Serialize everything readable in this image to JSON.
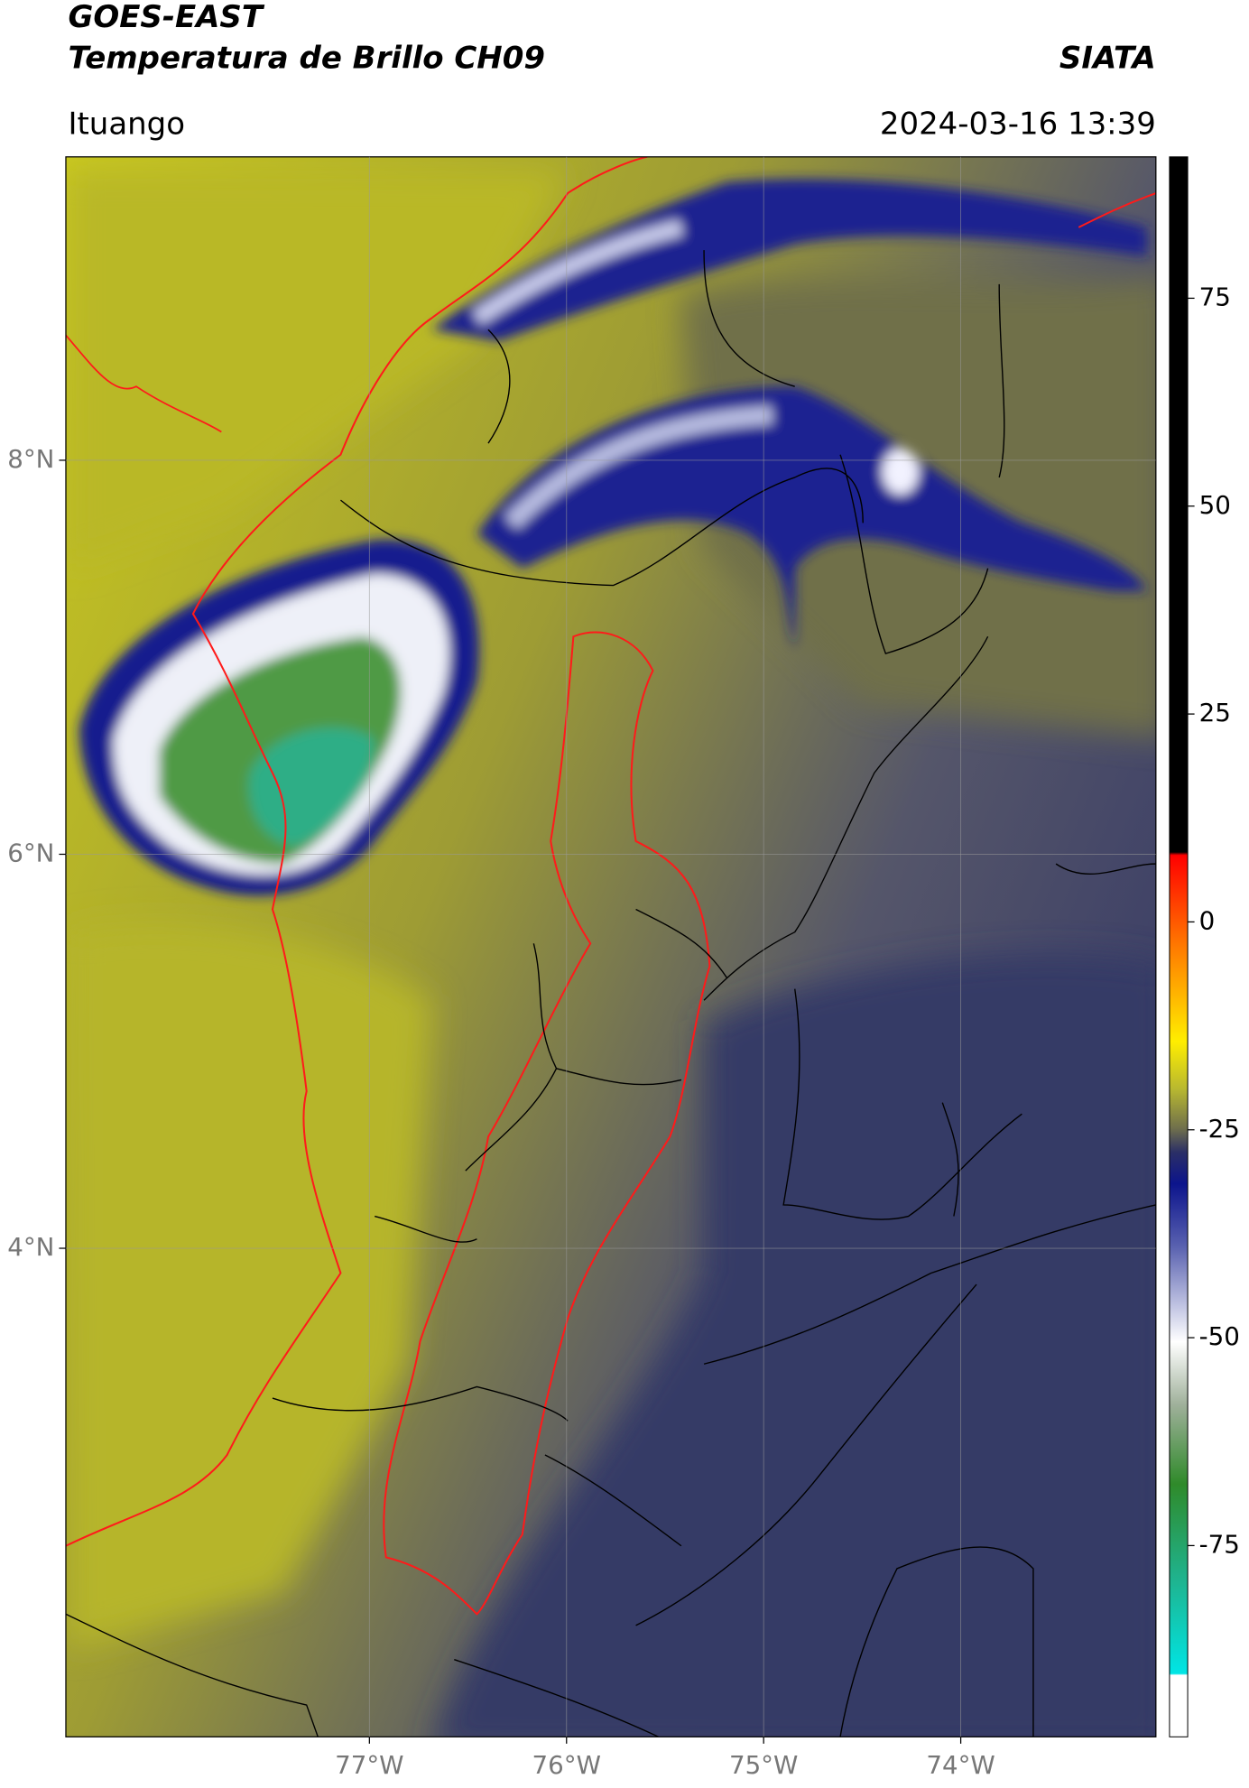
{
  "header": {
    "title_line1": "GOES-EAST",
    "title_line2": "Temperatura de Brillo CH09",
    "organization": "SIATA",
    "location": "Ituango",
    "datetime": "2024-03-16 13:39"
  },
  "map": {
    "xlim": [
      -78.54,
      -73.01
    ],
    "ylim": [
      1.52,
      9.54
    ],
    "xticks": [
      {
        "value": -77,
        "label": "77°W"
      },
      {
        "value": -76,
        "label": "76°W"
      },
      {
        "value": -75,
        "label": "75°W"
      },
      {
        "value": -74,
        "label": "74°W"
      }
    ],
    "yticks": [
      {
        "value": 8,
        "label": "8°N"
      },
      {
        "value": 6,
        "label": "6°N"
      },
      {
        "value": 4,
        "label": "4°N"
      }
    ],
    "grid": true
  },
  "colorbar": {
    "lim": [
      -98,
      92
    ],
    "ticks": [
      75,
      50,
      25,
      0,
      -25,
      -50,
      -75
    ]
  }
}
